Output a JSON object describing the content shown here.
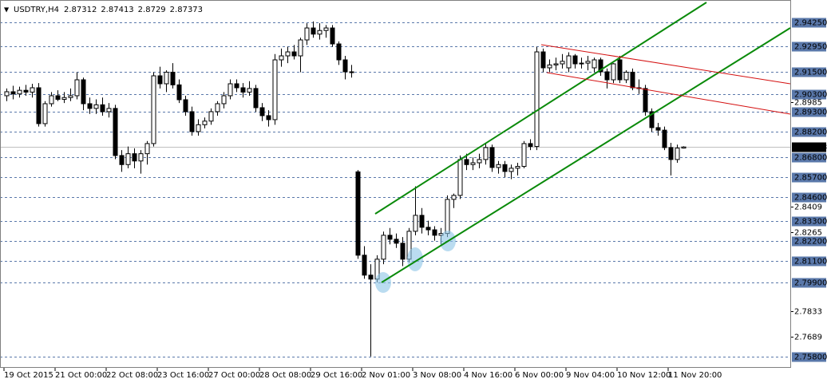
{
  "chart_data": {
    "type": "candlestick",
    "title": "USDTRY,H4",
    "ylim": [
      2.75228,
      2.95483
    ],
    "current_line_color": "#c0c0c0",
    "level_color": "#5a78aa",
    "levels": [
      {
        "value": 2.9425,
        "label": "2.94250"
      },
      {
        "value": 2.9295,
        "label": "2.92950"
      },
      {
        "value": 2.915,
        "label": "2.91500"
      },
      {
        "value": 2.903,
        "label": "2.90300"
      },
      {
        "value": 2.893,
        "label": "2.89300"
      },
      {
        "value": 2.882,
        "label": "2.88200"
      },
      {
        "value": 2.868,
        "label": "2.86800"
      },
      {
        "value": 2.857,
        "label": "2.85700"
      },
      {
        "value": 2.846,
        "label": "2.84600"
      },
      {
        "value": 2.833,
        "label": "2.83300"
      },
      {
        "value": 2.822,
        "label": "2.82200"
      },
      {
        "value": 2.811,
        "label": "2.81100"
      },
      {
        "value": 2.799,
        "label": "2.79900"
      },
      {
        "value": 2.758,
        "label": "2.75800"
      }
    ],
    "yticks": [
      2.8985,
      2.8409,
      2.8265,
      2.7833,
      2.7689
    ],
    "categories": [
      "19 Oct 2015",
      null,
      null,
      null,
      null,
      null,
      null,
      null,
      "21 Oct 00:00",
      null,
      null,
      null,
      null,
      null,
      null,
      null,
      "22 Oct 08:00",
      null,
      null,
      null,
      null,
      null,
      null,
      null,
      "23 Oct 16:00",
      null,
      null,
      null,
      null,
      null,
      null,
      null,
      "27 Oct 00:00",
      null,
      null,
      null,
      null,
      null,
      null,
      null,
      "28 Oct 08:00",
      null,
      null,
      null,
      null,
      null,
      null,
      null,
      "29 Oct 16:00",
      null,
      null,
      null,
      null,
      null,
      null,
      null,
      "2 Nov 01:00",
      null,
      null,
      null,
      null,
      null,
      null,
      null,
      "3 Nov 08:00",
      null,
      null,
      null,
      null,
      null,
      null,
      null,
      "4 Nov 16:00",
      null,
      null,
      null,
      null,
      null,
      null,
      null,
      "6 Nov 00:00",
      null,
      null,
      null,
      null,
      null,
      null,
      null,
      "9 Nov 04:00",
      null,
      null,
      null,
      null,
      null,
      null,
      null,
      "10 Nov 12:00",
      null,
      null,
      null,
      null,
      null,
      null,
      null,
      "11 Nov 20:00",
      null,
      null
    ],
    "candles": [
      [
        2.902,
        2.906,
        2.899,
        2.9042
      ],
      [
        2.9042,
        2.9075,
        2.9,
        2.903
      ],
      [
        2.903,
        2.907,
        2.901,
        2.905
      ],
      [
        2.905,
        2.908,
        2.902,
        2.904
      ],
      [
        2.904,
        2.9086,
        2.901,
        2.9064
      ],
      [
        2.9064,
        2.909,
        2.885,
        2.8866
      ],
      [
        2.8866,
        2.899,
        2.885,
        2.8976
      ],
      [
        2.8976,
        2.904,
        2.896,
        2.902
      ],
      [
        2.902,
        2.905,
        2.899,
        2.9
      ],
      [
        2.9,
        2.904,
        2.898,
        2.901
      ],
      [
        2.901,
        2.906,
        2.899,
        2.902
      ],
      [
        2.902,
        2.915,
        2.9,
        2.9108
      ],
      [
        2.9108,
        2.912,
        2.894,
        2.8976
      ],
      [
        2.8976,
        2.901,
        2.892,
        2.895
      ],
      [
        2.895,
        2.9,
        2.892,
        2.897
      ],
      [
        2.897,
        2.901,
        2.891,
        2.8932
      ],
      [
        2.8932,
        2.898,
        2.89,
        2.895
      ],
      [
        2.895,
        2.897,
        2.867,
        2.869
      ],
      [
        2.869,
        2.872,
        2.86,
        2.864
      ],
      [
        2.864,
        2.874,
        2.862,
        2.87
      ],
      [
        2.87,
        2.873,
        2.862,
        2.866
      ],
      [
        2.866,
        2.872,
        2.859,
        2.87
      ],
      [
        2.87,
        2.877,
        2.864,
        2.8756
      ],
      [
        2.8756,
        2.915,
        2.874,
        2.913
      ],
      [
        2.913,
        2.918,
        2.906,
        2.9086
      ],
      [
        2.9086,
        2.916,
        2.904,
        2.915
      ],
      [
        2.915,
        2.92,
        2.906,
        2.908
      ],
      [
        2.908,
        2.911,
        2.898,
        2.8998
      ],
      [
        2.8998,
        2.902,
        2.891,
        2.8932
      ],
      [
        2.8932,
        2.896,
        2.88,
        2.8822
      ],
      [
        2.8822,
        2.889,
        2.88,
        2.886
      ],
      [
        2.886,
        2.89,
        2.884,
        2.888
      ],
      [
        2.888,
        2.895,
        2.886,
        2.8932
      ],
      [
        2.8932,
        2.899,
        2.891,
        2.8976
      ],
      [
        2.8976,
        2.904,
        2.895,
        2.902
      ],
      [
        2.902,
        2.911,
        2.9,
        2.9086
      ],
      [
        2.9086,
        2.911,
        2.904,
        2.9064
      ],
      [
        2.9064,
        2.909,
        2.901,
        2.904
      ],
      [
        2.904,
        2.91,
        2.902,
        2.906
      ],
      [
        2.906,
        2.908,
        2.893,
        2.8954
      ],
      [
        2.8954,
        2.898,
        2.888,
        2.891
      ],
      [
        2.891,
        2.894,
        2.885,
        2.8888
      ],
      [
        2.8888,
        2.925,
        2.886,
        2.9218
      ],
      [
        2.9218,
        2.928,
        2.918,
        2.924
      ],
      [
        2.924,
        2.929,
        2.92,
        2.9262
      ],
      [
        2.9262,
        2.93,
        2.922,
        2.924
      ],
      [
        2.924,
        2.934,
        2.915,
        2.9328
      ],
      [
        2.9328,
        2.942,
        2.93,
        2.9394
      ],
      [
        2.9394,
        2.943,
        2.934,
        2.936
      ],
      [
        2.936,
        2.942,
        2.933,
        2.938
      ],
      [
        2.938,
        2.941,
        2.934,
        2.9394
      ],
      [
        2.9394,
        2.941,
        2.929,
        2.9306
      ],
      [
        2.9306,
        2.932,
        2.919,
        2.9218
      ],
      [
        2.9218,
        2.924,
        2.911,
        2.9152
      ],
      [
        2.9152,
        2.919,
        2.912,
        2.915
      ],
      [
        2.86,
        2.861,
        2.812,
        2.814
      ],
      [
        2.814,
        2.819,
        2.801,
        2.803
      ],
      [
        2.803,
        2.809,
        2.7581,
        2.8008
      ],
      [
        2.8008,
        2.814,
        2.799,
        2.8118
      ],
      [
        2.8118,
        2.827,
        2.809,
        2.825
      ],
      [
        2.825,
        2.829,
        2.82,
        2.8228
      ],
      [
        2.8228,
        2.826,
        2.818,
        2.8206
      ],
      [
        2.8206,
        2.824,
        2.808,
        2.8118
      ],
      [
        2.8118,
        2.829,
        2.81,
        2.8272
      ],
      [
        2.8272,
        2.852,
        2.825,
        2.836
      ],
      [
        2.836,
        2.84,
        2.826,
        2.8294
      ],
      [
        2.8294,
        2.833,
        2.825,
        2.828
      ],
      [
        2.828,
        2.83,
        2.822,
        2.825
      ],
      [
        2.825,
        2.829,
        2.82,
        2.826
      ],
      [
        2.826,
        2.847,
        2.824,
        2.8448
      ],
      [
        2.8448,
        2.848,
        2.84,
        2.847
      ],
      [
        2.847,
        2.869,
        2.845,
        2.8668
      ],
      [
        2.8668,
        2.87,
        2.861,
        2.864
      ],
      [
        2.864,
        2.868,
        2.861,
        2.865
      ],
      [
        2.865,
        2.87,
        2.862,
        2.8668
      ],
      [
        2.8668,
        2.876,
        2.864,
        2.8734
      ],
      [
        2.8734,
        2.875,
        2.86,
        2.8624
      ],
      [
        2.8624,
        2.866,
        2.859,
        2.864
      ],
      [
        2.864,
        2.866,
        2.857,
        2.8602
      ],
      [
        2.8602,
        2.864,
        2.856,
        2.862
      ],
      [
        2.862,
        2.865,
        2.858,
        2.863
      ],
      [
        2.863,
        2.877,
        2.862,
        2.8756
      ],
      [
        2.8756,
        2.878,
        2.872,
        2.874
      ],
      [
        2.874,
        2.929,
        2.872,
        2.9262
      ],
      [
        2.9262,
        2.928,
        2.915,
        2.9174
      ],
      [
        2.9174,
        2.922,
        2.915,
        2.919
      ],
      [
        2.919,
        2.923,
        2.916,
        2.9196
      ],
      [
        2.9196,
        2.925,
        2.917,
        2.921
      ],
      [
        2.9174,
        2.926,
        2.915,
        2.924
      ],
      [
        2.924,
        2.925,
        2.917,
        2.9196
      ],
      [
        2.9196,
        2.923,
        2.917,
        2.92
      ],
      [
        2.92,
        2.924,
        2.916,
        2.921
      ],
      [
        2.9174,
        2.923,
        2.915,
        2.9218
      ],
      [
        2.9218,
        2.923,
        2.913,
        2.9152
      ],
      [
        2.9152,
        2.917,
        2.906,
        2.9108
      ],
      [
        2.9108,
        2.92,
        2.909,
        2.9196
      ],
      [
        2.9218,
        2.924,
        2.909,
        2.9108
      ],
      [
        2.9108,
        2.916,
        2.909,
        2.915
      ],
      [
        2.915,
        2.917,
        2.905,
        2.9064
      ],
      [
        2.9064,
        2.911,
        2.903,
        2.906
      ],
      [
        2.906,
        2.908,
        2.891,
        2.8932
      ],
      [
        2.8932,
        2.895,
        2.882,
        2.8844
      ],
      [
        2.8844,
        2.887,
        2.88,
        2.883
      ],
      [
        2.883,
        2.885,
        2.872,
        2.8734
      ],
      [
        2.8734,
        2.876,
        2.858,
        2.8668
      ],
      [
        2.8668,
        2.875,
        2.865,
        2.8731
      ],
      [
        2.87312,
        2.87413,
        2.8729,
        2.87373
      ]
    ]
  }
}
